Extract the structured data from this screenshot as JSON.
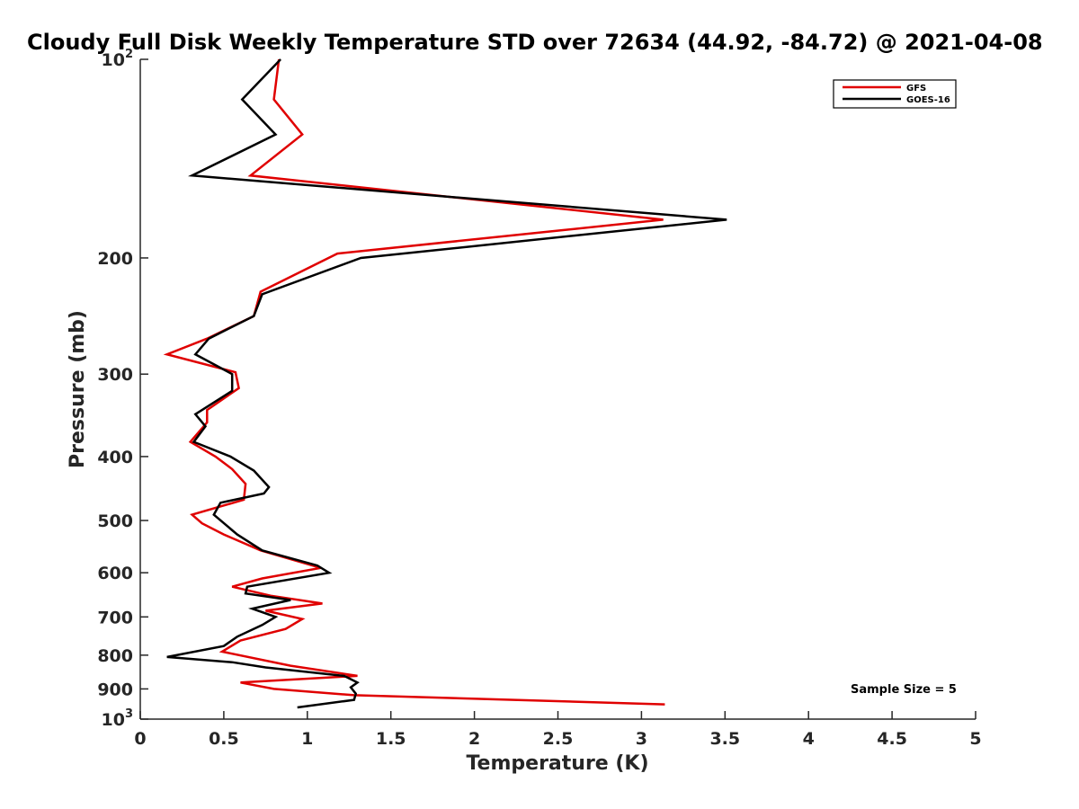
{
  "chart_data": {
    "type": "line",
    "title": "Cloudy Full Disk Weekly Temperature STD over 72634 (44.92, -84.72) @ 2021-04-08",
    "xlabel": "Temperature (K)",
    "ylabel": "Pressure (mb)",
    "xlim": [
      0,
      5
    ],
    "ylim": [
      100,
      1000
    ],
    "y_scale": "log",
    "y_reversed": true,
    "x_ticks": [
      "0",
      "0.5",
      "1",
      "1.5",
      "2",
      "2.5",
      "3",
      "3.5",
      "4",
      "4.5",
      "5"
    ],
    "y_ticks": [
      {
        "value": 100,
        "base": "10",
        "exp": "2"
      },
      {
        "value": 200,
        "label": "200"
      },
      {
        "value": 300,
        "label": "300"
      },
      {
        "value": 400,
        "label": "400"
      },
      {
        "value": 500,
        "label": "500"
      },
      {
        "value": 600,
        "label": "600"
      },
      {
        "value": 700,
        "label": "700"
      },
      {
        "value": 800,
        "label": "800"
      },
      {
        "value": 900,
        "label": "900"
      },
      {
        "value": 1000,
        "base": "10",
        "exp": "3"
      }
    ],
    "grid": false,
    "legend_position": "top-right",
    "annotation": "Sample Size = 5",
    "series": [
      {
        "name": "GFS",
        "color": "#e00000",
        "points": [
          [
            0.83,
            100
          ],
          [
            0.8,
            115
          ],
          [
            0.97,
            130
          ],
          [
            0.66,
            150
          ],
          [
            3.13,
            175
          ],
          [
            1.18,
            197
          ],
          [
            0.72,
            225
          ],
          [
            0.68,
            245
          ],
          [
            0.4,
            265
          ],
          [
            0.16,
            280
          ],
          [
            0.57,
            298
          ],
          [
            0.59,
            315
          ],
          [
            0.4,
            340
          ],
          [
            0.4,
            355
          ],
          [
            0.3,
            380
          ],
          [
            0.45,
            400
          ],
          [
            0.55,
            418
          ],
          [
            0.63,
            440
          ],
          [
            0.62,
            465
          ],
          [
            0.31,
            490
          ],
          [
            0.37,
            505
          ],
          [
            0.5,
            525
          ],
          [
            0.72,
            555
          ],
          [
            1.08,
            590
          ],
          [
            0.73,
            612
          ],
          [
            0.55,
            630
          ],
          [
            0.78,
            650
          ],
          [
            1.09,
            668
          ],
          [
            0.75,
            685
          ],
          [
            0.97,
            705
          ],
          [
            0.87,
            730
          ],
          [
            0.6,
            760
          ],
          [
            0.49,
            790
          ],
          [
            0.9,
            830
          ],
          [
            1.3,
            860
          ],
          [
            0.6,
            880
          ],
          [
            0.8,
            900
          ],
          [
            1.28,
            920
          ],
          [
            3.14,
            950
          ]
        ]
      },
      {
        "name": "GOES-16",
        "color": "#000000",
        "points": [
          [
            0.84,
            100
          ],
          [
            0.61,
            115
          ],
          [
            0.81,
            130
          ],
          [
            0.31,
            150
          ],
          [
            3.51,
            175
          ],
          [
            1.32,
            200
          ],
          [
            0.73,
            227
          ],
          [
            0.68,
            245
          ],
          [
            0.41,
            265
          ],
          [
            0.33,
            280
          ],
          [
            0.55,
            300
          ],
          [
            0.55,
            318
          ],
          [
            0.33,
            345
          ],
          [
            0.39,
            360
          ],
          [
            0.32,
            380
          ],
          [
            0.54,
            400
          ],
          [
            0.68,
            420
          ],
          [
            0.77,
            445
          ],
          [
            0.74,
            455
          ],
          [
            0.48,
            470
          ],
          [
            0.44,
            490
          ],
          [
            0.58,
            525
          ],
          [
            0.73,
            555
          ],
          [
            1.06,
            585
          ],
          [
            1.13,
            600
          ],
          [
            0.64,
            630
          ],
          [
            0.63,
            645
          ],
          [
            0.9,
            660
          ],
          [
            0.67,
            680
          ],
          [
            0.81,
            700
          ],
          [
            0.73,
            720
          ],
          [
            0.58,
            750
          ],
          [
            0.5,
            775
          ],
          [
            0.16,
            805
          ],
          [
            0.55,
            820
          ],
          [
            0.75,
            835
          ],
          [
            1.22,
            860
          ],
          [
            1.3,
            880
          ],
          [
            1.26,
            895
          ],
          [
            1.29,
            915
          ],
          [
            1.28,
            935
          ],
          [
            0.94,
            960
          ]
        ]
      }
    ]
  }
}
